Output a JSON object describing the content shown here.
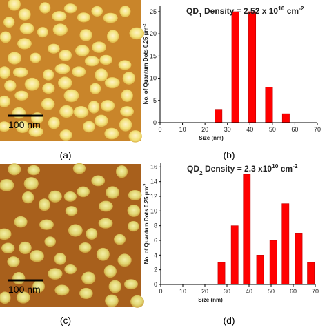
{
  "chart_data": [
    {
      "type": "bar",
      "title": [
        "QD",
        "1",
        " Density = 2.52 x 10",
        "10",
        " cm",
        "-2"
      ],
      "xlabel": "Size (nm)",
      "ylabel": [
        "No. of Quantum Dots 0.25 µm",
        "-2"
      ],
      "x": [
        26,
        33.5,
        41,
        48.5,
        56
      ],
      "values": [
        3,
        25,
        25,
        8,
        2
      ],
      "color": "#ff0000",
      "xlim": [
        0,
        70
      ],
      "xticks": [
        0,
        10,
        20,
        30,
        40,
        50,
        60,
        70
      ],
      "ylim": [
        0,
        26.4
      ],
      "yticks": [
        0,
        5,
        10,
        15,
        20,
        25
      ]
    },
    {
      "type": "bar",
      "title": [
        "QD",
        "2",
        " Density = 2.3 x10",
        "10",
        " cm",
        "-2"
      ],
      "xlabel": "Size (nm)",
      "ylabel": [
        "No. of Quantum Dots 0.25 µm",
        "-2"
      ],
      "x": [
        27.5,
        33.5,
        39,
        45,
        51,
        56.5,
        62.5,
        68
      ],
      "values": [
        3,
        8,
        15,
        4,
        6,
        11,
        7,
        3
      ],
      "color": "#ff0000",
      "xlim": [
        0,
        70
      ],
      "xticks": [
        0,
        10,
        20,
        30,
        40,
        50,
        60,
        70
      ],
      "ylim": [
        0,
        16.5
      ],
      "yticks": [
        0,
        2,
        4,
        6,
        8,
        10,
        12,
        14,
        16
      ]
    }
  ],
  "panels": [
    {
      "label": "(a)",
      "scale_bar": "100 nm"
    },
    {
      "label": "(b)"
    },
    {
      "label": "(c)",
      "scale_bar": "100 nm"
    },
    {
      "label": "(d)"
    }
  ]
}
